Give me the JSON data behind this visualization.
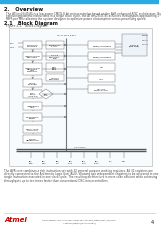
{
  "page_bg": "#ffffff",
  "header_color": "#29abe2",
  "title_section": "2.   Overview",
  "overview_text1": "The ATtiny25/45/85 is a low power CMOS 8-bit microcontroller based on the AVR enhanced RISC architecture. By",
  "overview_text2": "executing powerful instructions in a single clock cycle, the ATtiny25/45/85 achieves throughputs approaching 1",
  "overview_text3": "MIPS per MHz allowing the system designer to optimize power consumption versus processing speed.",
  "section_21": "2.1   Block Diagram",
  "figure_label": "Figure 2-1.   Block Diagram",
  "footer_text1": "The AVR core combines a rich instruction set with 32 general purpose working registers. All 32 registers are",
  "footer_text2": "directly connected to the Arithmetic Logic Unit (ALU), allowing two independent registers to be accessed in one",
  "footer_text3": "single instruction executed in one clock cycle. The resulting architecture is more code efficient while achieving",
  "footer_text4": "throughputs up to ten times faster than conventional CISC microcontrollers.",
  "part_number": "ATtiny25/45/85 [DATASHEET]",
  "doc_ref": "Atmel-2586O-AVR-ATtiny25-ATtiny45-ATtiny85_Datasheet_11/2013",
  "page_number": "4",
  "atmel_color": "#cc0000",
  "text_dark": "#111111",
  "text_mid": "#444444",
  "box_fill": "#ffffff",
  "box_edge": "#666666",
  "bus_color": "#555555",
  "diagram_bg": "#f8fbfd",
  "diagram_edge": "#aaaaaa",
  "pin_fill": "#e8f0f8",
  "vline_color": "#888888"
}
